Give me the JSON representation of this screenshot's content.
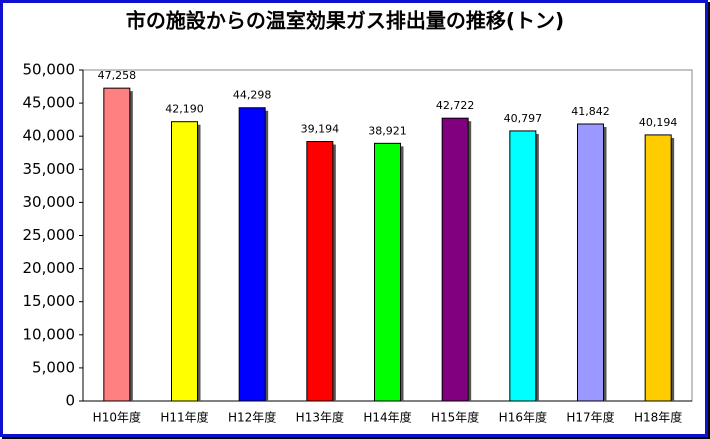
{
  "chart_data": {
    "type": "bar",
    "title": "市の施設からの温室効果ガス排出量の推移(トン)",
    "categories": [
      "H10年度",
      "H11年度",
      "H12年度",
      "H13年度",
      "H14年度",
      "H15年度",
      "H16年度",
      "H17年度",
      "H18年度"
    ],
    "values": [
      47258,
      42190,
      44298,
      39194,
      38921,
      42722,
      40797,
      41842,
      40194
    ],
    "value_labels": [
      "47,258",
      "42,190",
      "44,298",
      "39,194",
      "38,921",
      "42,722",
      "40,797",
      "41,842",
      "40,194"
    ],
    "colors": [
      "#ff8080",
      "#ffff00",
      "#0000ff",
      "#ff0000",
      "#00ff00",
      "#800080",
      "#00ffff",
      "#9999ff",
      "#ffcc00"
    ],
    "ylim": [
      0,
      50000
    ],
    "yticks": [
      0,
      {
        "value": 5000,
        "label": "5,000"
      },
      {
        "value": 10000,
        "label": "10,000"
      },
      {
        "value": 15000,
        "label": "15,000"
      },
      {
        "value": 20000,
        "label": "20,000"
      },
      {
        "value": 25000,
        "label": "25,000"
      },
      {
        "value": 30000,
        "label": "30,000"
      },
      {
        "value": 35000,
        "label": "35,000"
      },
      {
        "value": 40000,
        "label": "40,000"
      },
      {
        "value": 45000,
        "label": "45,000"
      },
      {
        "value": 50000,
        "label": "50,000"
      }
    ],
    "grid": false
  }
}
